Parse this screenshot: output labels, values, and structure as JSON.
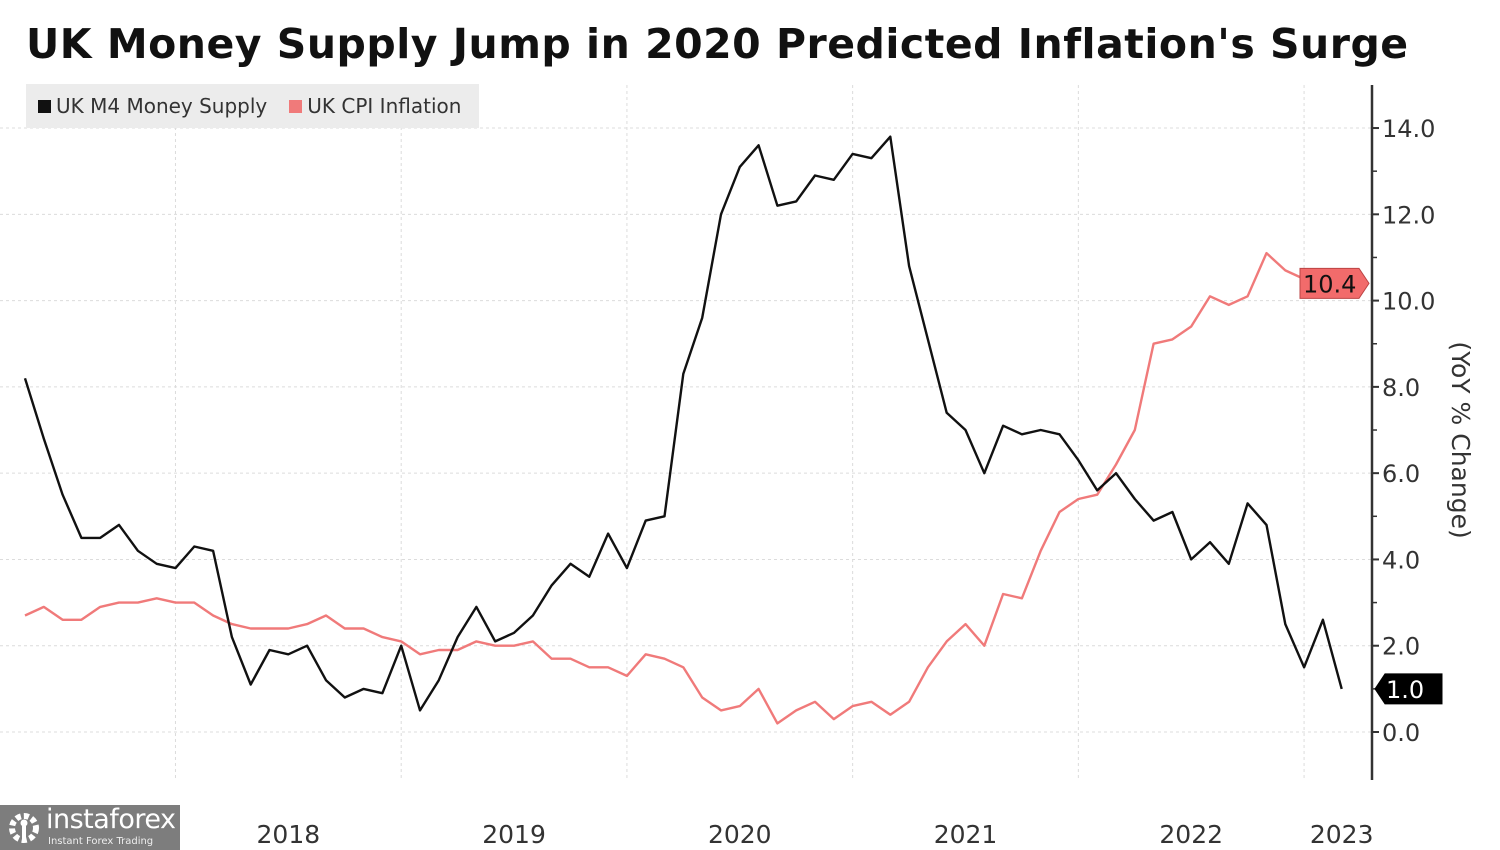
{
  "chart_data": {
    "type": "line",
    "title": "UK Money Supply Jump in 2020 Predicted Inflation's Surge",
    "ylabel": "(YoY % Change)",
    "xlabel": "",
    "frequency": "monthly",
    "x_start": "2017-04",
    "x_end": "2023-02",
    "ylim": [
      -1,
      15
    ],
    "yticks": [
      "0.0",
      "2.0",
      "4.0",
      "6.0",
      "8.0",
      "10.0",
      "12.0",
      "14.0"
    ],
    "xticks": [
      "2018",
      "2019",
      "2020",
      "2021",
      "2022",
      "2023"
    ],
    "grid": true,
    "legend_position": "top-left",
    "y_axis_side": "right",
    "series": [
      {
        "name": "UK M4 Money Supply",
        "color": "#111111",
        "last_value_label": "1.0",
        "values": [
          8.2,
          6.8,
          5.5,
          4.5,
          4.5,
          4.8,
          4.2,
          3.9,
          3.8,
          4.3,
          4.2,
          2.2,
          1.1,
          1.9,
          1.8,
          2.0,
          1.2,
          0.8,
          1.0,
          0.9,
          2.0,
          0.5,
          1.2,
          2.2,
          2.9,
          2.1,
          2.3,
          2.7,
          3.4,
          3.9,
          3.6,
          4.6,
          3.8,
          4.9,
          5.0,
          8.3,
          9.6,
          12.0,
          13.1,
          13.6,
          12.2,
          12.3,
          12.9,
          12.8,
          13.4,
          13.3,
          13.8,
          10.8,
          9.1,
          7.4,
          7.0,
          6.0,
          7.1,
          6.9,
          7.0,
          6.9,
          6.3,
          5.6,
          6.0,
          5.4,
          4.9,
          5.1,
          4.0,
          4.4,
          3.9,
          5.3,
          4.8,
          2.5,
          1.5,
          2.6,
          1.0
        ]
      },
      {
        "name": "UK CPI Inflation",
        "color": "#f07a7a",
        "last_value_label": "10.4",
        "values": [
          2.7,
          2.9,
          2.6,
          2.6,
          2.9,
          3.0,
          3.0,
          3.1,
          3.0,
          3.0,
          2.7,
          2.5,
          2.4,
          2.4,
          2.4,
          2.5,
          2.7,
          2.4,
          2.4,
          2.2,
          2.1,
          1.8,
          1.9,
          1.9,
          2.1,
          2.0,
          2.0,
          2.1,
          1.7,
          1.7,
          1.5,
          1.5,
          1.3,
          1.8,
          1.7,
          1.5,
          0.8,
          0.5,
          0.6,
          1.0,
          0.2,
          0.5,
          0.7,
          0.3,
          0.6,
          0.7,
          0.4,
          0.7,
          1.5,
          2.1,
          2.5,
          2.0,
          3.2,
          3.1,
          4.2,
          5.1,
          5.4,
          5.5,
          6.2,
          7.0,
          9.0,
          9.1,
          9.4,
          10.1,
          9.9,
          10.1,
          11.1,
          10.7,
          10.5,
          10.1,
          10.4
        ]
      }
    ]
  },
  "watermark": {
    "brand": "instaforex",
    "tagline": "Instant Forex Trading"
  }
}
